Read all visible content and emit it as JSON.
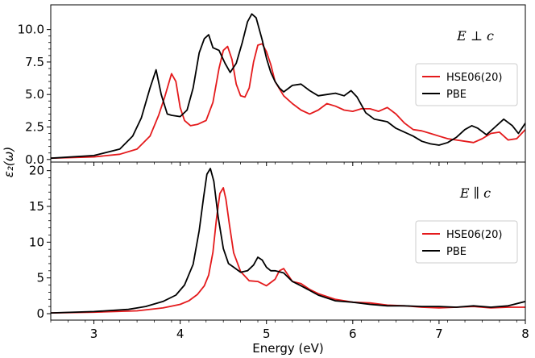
{
  "chart_data": {
    "type": "line",
    "xlabel": "Energy (eV)",
    "ylabel": "ε₂(ω)",
    "xlim": [
      2.5,
      8.0
    ],
    "xticks": [
      "3",
      "4",
      "5",
      "6",
      "7",
      "8"
    ],
    "xtick_values": [
      3,
      4,
      5,
      6,
      7,
      8
    ],
    "colors": {
      "HSE06(20)": "#e41a1c",
      "PBE": "#000000"
    },
    "panels": [
      {
        "id": "top",
        "annotation": "E ⊥ c",
        "ylim": [
          -0.2,
          11.9
        ],
        "yticks": [
          "0.0",
          "2.5",
          "5.0",
          "7.5",
          "10.0"
        ],
        "ytick_values": [
          0.0,
          2.5,
          5.0,
          7.5,
          10.0
        ],
        "legend": [
          "HSE06(20)",
          "PBE"
        ],
        "legend_position": "center-right",
        "series": [
          {
            "name": "HSE06(20)",
            "color": "#e41a1c",
            "x": [
              2.5,
              3.0,
              3.3,
              3.5,
              3.65,
              3.75,
              3.82,
              3.9,
              3.95,
              4.0,
              4.05,
              4.12,
              4.2,
              4.3,
              4.38,
              4.45,
              4.5,
              4.55,
              4.6,
              4.65,
              4.7,
              4.75,
              4.8,
              4.85,
              4.9,
              4.95,
              5.0,
              5.05,
              5.1,
              5.2,
              5.3,
              5.4,
              5.5,
              5.6,
              5.7,
              5.8,
              5.9,
              6.0,
              6.1,
              6.2,
              6.3,
              6.4,
              6.5,
              6.6,
              6.7,
              6.8,
              6.9,
              7.0,
              7.1,
              7.2,
              7.3,
              7.4,
              7.5,
              7.6,
              7.7,
              7.8,
              7.9,
              8.0
            ],
            "y": [
              0.1,
              0.2,
              0.4,
              0.8,
              1.8,
              3.4,
              4.8,
              6.6,
              6.0,
              4.0,
              3.0,
              2.6,
              2.7,
              3.0,
              4.4,
              7.0,
              8.4,
              8.7,
              7.7,
              5.8,
              4.9,
              4.8,
              5.5,
              7.5,
              8.8,
              8.9,
              8.3,
              7.3,
              6.0,
              4.9,
              4.3,
              3.8,
              3.5,
              3.8,
              4.3,
              4.1,
              3.8,
              3.7,
              3.9,
              3.9,
              3.7,
              4.0,
              3.5,
              2.8,
              2.3,
              2.2,
              2.0,
              1.8,
              1.6,
              1.5,
              1.4,
              1.3,
              1.6,
              2.0,
              2.1,
              1.5,
              1.6,
              2.3
            ]
          },
          {
            "name": "PBE",
            "color": "#000000",
            "x": [
              2.5,
              3.0,
              3.3,
              3.45,
              3.55,
              3.65,
              3.72,
              3.78,
              3.85,
              3.9,
              4.0,
              4.08,
              4.15,
              4.22,
              4.28,
              4.33,
              4.38,
              4.45,
              4.52,
              4.58,
              4.65,
              4.72,
              4.78,
              4.83,
              4.88,
              4.95,
              5.0,
              5.05,
              5.1,
              5.15,
              5.2,
              5.3,
              5.4,
              5.5,
              5.6,
              5.7,
              5.8,
              5.9,
              5.98,
              6.05,
              6.15,
              6.25,
              6.4,
              6.5,
              6.6,
              6.7,
              6.8,
              6.9,
              7.0,
              7.1,
              7.2,
              7.3,
              7.38,
              7.45,
              7.55,
              7.65,
              7.75,
              7.85,
              7.92,
              8.0
            ],
            "y": [
              0.1,
              0.3,
              0.8,
              1.8,
              3.2,
              5.5,
              6.9,
              5.0,
              3.5,
              3.4,
              3.3,
              3.8,
              5.5,
              8.2,
              9.3,
              9.6,
              8.6,
              8.4,
              7.4,
              6.7,
              7.4,
              9.0,
              10.6,
              11.2,
              10.9,
              9.2,
              7.8,
              6.7,
              6.0,
              5.5,
              5.2,
              5.7,
              5.8,
              5.3,
              4.9,
              5.0,
              5.1,
              4.9,
              5.3,
              4.8,
              3.6,
              3.1,
              2.9,
              2.4,
              2.1,
              1.8,
              1.4,
              1.2,
              1.1,
              1.3,
              1.7,
              2.3,
              2.6,
              2.4,
              1.9,
              2.5,
              3.1,
              2.6,
              2.0,
              2.8
            ]
          }
        ]
      },
      {
        "id": "bottom",
        "annotation": "E ∥ c",
        "ylim": [
          -0.9,
          21.2
        ],
        "yticks": [
          "0",
          "5",
          "10",
          "15",
          "20"
        ],
        "ytick_values": [
          0,
          5,
          10,
          15,
          20
        ],
        "legend": [
          "HSE06(20)",
          "PBE"
        ],
        "legend_position": "center-right",
        "series": [
          {
            "name": "HSE06(20)",
            "color": "#e41a1c",
            "x": [
              2.5,
              3.0,
              3.5,
              3.8,
              4.0,
              4.1,
              4.2,
              4.28,
              4.33,
              4.38,
              4.42,
              4.46,
              4.5,
              4.53,
              4.57,
              4.62,
              4.7,
              4.8,
              4.9,
              5.0,
              5.1,
              5.15,
              5.2,
              5.3,
              5.4,
              5.5,
              5.6,
              5.8,
              6.0,
              6.2,
              6.4,
              6.6,
              6.8,
              7.0,
              7.2,
              7.4,
              7.6,
              7.8,
              8.0
            ],
            "y": [
              0.1,
              0.2,
              0.4,
              0.8,
              1.3,
              1.8,
              2.7,
              3.9,
              5.4,
              8.6,
              13.2,
              16.8,
              17.6,
              16.0,
              12.5,
              8.5,
              5.9,
              4.6,
              4.5,
              3.9,
              4.8,
              6.0,
              6.3,
              4.5,
              4.2,
              3.4,
              2.8,
              2.0,
              1.6,
              1.5,
              1.2,
              1.1,
              0.9,
              0.8,
              0.9,
              1.0,
              0.8,
              0.9,
              0.9
            ]
          },
          {
            "name": "PBE",
            "color": "#000000",
            "x": [
              2.5,
              3.0,
              3.4,
              3.6,
              3.8,
              3.95,
              4.05,
              4.15,
              4.22,
              4.27,
              4.31,
              4.35,
              4.39,
              4.44,
              4.5,
              4.56,
              4.62,
              4.7,
              4.78,
              4.85,
              4.9,
              4.95,
              5.0,
              5.05,
              5.1,
              5.2,
              5.3,
              5.4,
              5.6,
              5.8,
              6.0,
              6.2,
              6.4,
              6.6,
              6.8,
              7.0,
              7.2,
              7.4,
              7.6,
              7.8,
              8.0
            ],
            "y": [
              0.1,
              0.3,
              0.6,
              1.0,
              1.7,
              2.6,
              4.0,
              6.9,
              11.6,
              16.2,
              19.5,
              20.3,
              18.5,
              13.5,
              9.1,
              7.0,
              6.5,
              5.8,
              6.0,
              6.8,
              7.9,
              7.5,
              6.5,
              6.0,
              6.0,
              5.7,
              4.5,
              3.9,
              2.6,
              1.8,
              1.6,
              1.3,
              1.1,
              1.1,
              1.0,
              1.0,
              0.9,
              1.1,
              0.9,
              1.1,
              1.7
            ]
          }
        ]
      }
    ]
  }
}
